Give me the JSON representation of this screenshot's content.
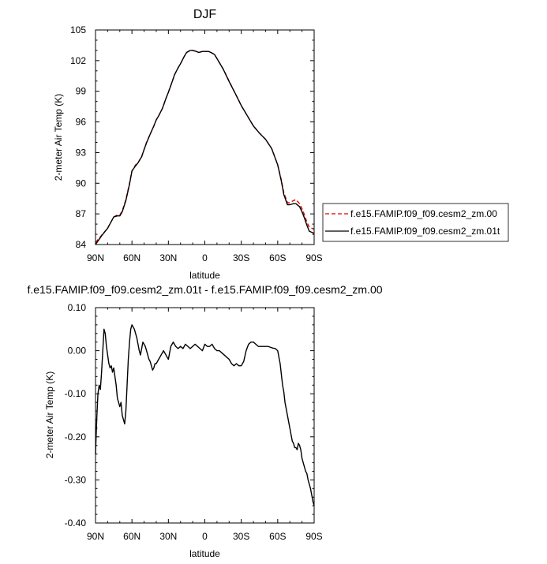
{
  "chart_data": [
    {
      "type": "line",
      "title": "DJF",
      "xlabel": "latitude",
      "ylabel": "2-meter Air Temp (K)",
      "x_range": [
        90,
        -90
      ],
      "x_ticks": [
        90,
        60,
        30,
        0,
        -30,
        -60,
        -90
      ],
      "x_tick_labels": [
        "90N",
        "60N",
        "30N",
        "0",
        "30S",
        "60S",
        "90S"
      ],
      "ylim": [
        84,
        105
      ],
      "y_ticks": [
        84,
        87,
        90,
        93,
        96,
        99,
        102,
        105
      ],
      "y_tick_labels": [
        "84",
        "87",
        "90",
        "93",
        "96",
        "99",
        "102",
        "105"
      ],
      "grid": false,
      "legend_position": "right",
      "series": [
        {
          "name": "f.e15.FAMIP.f09_f09.cesm2_zm.00",
          "color": "#dd0000",
          "dash": "dashed",
          "x": [
            90,
            85,
            80,
            75,
            72,
            70,
            68,
            65,
            62,
            60,
            57,
            55,
            52,
            50,
            48,
            45,
            42,
            40,
            38,
            35,
            32,
            30,
            27,
            25,
            22,
            20,
            17,
            15,
            12,
            10,
            7,
            5,
            2,
            0,
            -3,
            -5,
            -8,
            -10,
            -15,
            -20,
            -25,
            -30,
            -35,
            -40,
            -45,
            -50,
            -55,
            -60,
            -63,
            -65,
            -68,
            -70,
            -73,
            -75,
            -78,
            -80,
            -82,
            -84,
            -86,
            -88,
            -90
          ],
          "y": [
            84.2,
            84.9,
            85.6,
            86.7,
            86.9,
            86.9,
            87.3,
            88.4,
            90.0,
            91.2,
            91.8,
            92.0,
            92.6,
            93.3,
            94.0,
            94.8,
            95.6,
            96.2,
            96.6,
            97.3,
            98.3,
            98.9,
            99.9,
            100.6,
            101.3,
            101.7,
            102.4,
            102.8,
            103.0,
            103.0,
            102.9,
            102.8,
            102.9,
            102.9,
            102.9,
            102.8,
            102.6,
            102.2,
            101.2,
            100.0,
            98.8,
            97.6,
            96.6,
            95.6,
            94.9,
            94.3,
            93.4,
            91.8,
            90.3,
            89.1,
            88.1,
            88.1,
            88.3,
            88.4,
            88.0,
            87.5,
            86.9,
            86.2,
            85.7,
            85.6,
            85.5
          ]
        },
        {
          "name": "f.e15.FAMIP.f09_f09.cesm2_zm.01t",
          "color": "#000000",
          "dash": "solid",
          "x": [
            90,
            85,
            80,
            75,
            72,
            70,
            68,
            65,
            62,
            60,
            57,
            55,
            52,
            50,
            48,
            45,
            42,
            40,
            38,
            35,
            32,
            30,
            27,
            25,
            22,
            20,
            17,
            15,
            12,
            10,
            7,
            5,
            2,
            0,
            -3,
            -5,
            -8,
            -10,
            -15,
            -20,
            -25,
            -30,
            -35,
            -40,
            -45,
            -50,
            -55,
            -60,
            -63,
            -65,
            -68,
            -70,
            -73,
            -75,
            -78,
            -80,
            -82,
            -84,
            -86,
            -88,
            -90
          ],
          "y": [
            84.0,
            84.85,
            85.6,
            86.7,
            86.8,
            86.8,
            87.2,
            88.3,
            89.9,
            91.2,
            91.7,
            92.0,
            92.6,
            93.3,
            93.95,
            94.8,
            95.6,
            96.2,
            96.6,
            97.3,
            98.3,
            98.9,
            99.9,
            100.6,
            101.3,
            101.7,
            102.4,
            102.8,
            103.0,
            103.0,
            102.9,
            102.8,
            102.9,
            102.9,
            102.9,
            102.8,
            102.6,
            102.2,
            101.2,
            99.95,
            98.8,
            97.6,
            96.6,
            95.6,
            94.9,
            94.3,
            93.4,
            91.8,
            90.2,
            88.9,
            87.9,
            87.9,
            88.0,
            88.0,
            87.7,
            87.2,
            86.6,
            85.9,
            85.3,
            85.2,
            85.1
          ]
        }
      ]
    },
    {
      "type": "line",
      "title": "f.e15.FAMIP.f09_f09.cesm2_zm.01t - f.e15.FAMIP.f09_f09.cesm2_zm.00",
      "xlabel": "latitude",
      "ylabel": "2-meter Air Temp (K)",
      "x_range": [
        90,
        -90
      ],
      "x_ticks": [
        90,
        60,
        30,
        0,
        -30,
        -60,
        -90
      ],
      "x_tick_labels": [
        "90N",
        "60N",
        "30N",
        "0",
        "30S",
        "60S",
        "90S"
      ],
      "ylim": [
        -0.4,
        0.1
      ],
      "y_ticks": [
        -0.4,
        -0.3,
        -0.2,
        -0.1,
        0.0,
        0.1
      ],
      "y_tick_labels": [
        "-0.40",
        "-0.30",
        "-0.20",
        "-0.10",
        "0.00",
        "0.10"
      ],
      "grid": false,
      "series": [
        {
          "color": "#000000",
          "dash": "solid",
          "x": [
            90,
            89,
            88,
            87,
            86,
            85,
            84,
            83,
            82,
            81,
            80,
            79,
            78,
            77,
            76,
            75,
            74,
            73,
            72,
            71,
            70,
            69,
            68,
            67,
            66,
            65,
            64,
            63,
            62,
            61,
            60,
            59,
            58,
            57,
            56,
            55,
            54,
            53,
            52,
            51,
            50,
            49,
            48,
            47,
            46,
            45,
            44,
            43,
            42,
            41,
            40,
            38,
            36,
            34,
            32,
            30,
            28,
            26,
            24,
            22,
            20,
            18,
            16,
            14,
            12,
            10,
            8,
            6,
            4,
            2,
            0,
            -2,
            -4,
            -6,
            -8,
            -10,
            -12,
            -14,
            -16,
            -18,
            -20,
            -22,
            -24,
            -26,
            -28,
            -30,
            -32,
            -34,
            -36,
            -38,
            -40,
            -42,
            -44,
            -46,
            -48,
            -50,
            -52,
            -54,
            -56,
            -58,
            -60,
            -62,
            -64,
            -65,
            -66,
            -67,
            -68,
            -69,
            -70,
            -71,
            -72,
            -73,
            -74,
            -75,
            -76,
            -77,
            -78,
            -79,
            -80,
            -81,
            -82,
            -83,
            -84,
            -85,
            -86,
            -87,
            -88,
            -89,
            -90
          ],
          "y": [
            -0.24,
            -0.16,
            -0.1,
            -0.08,
            -0.09,
            -0.05,
            0.0,
            0.05,
            0.04,
            0.01,
            -0.01,
            -0.03,
            -0.04,
            -0.035,
            -0.05,
            -0.04,
            -0.06,
            -0.08,
            -0.11,
            -0.12,
            -0.13,
            -0.12,
            -0.15,
            -0.16,
            -0.17,
            -0.14,
            -0.08,
            -0.02,
            0.02,
            0.05,
            0.06,
            0.055,
            0.05,
            0.04,
            0.03,
            0.015,
            0.0,
            -0.01,
            0.005,
            0.02,
            0.015,
            0.01,
            0.0,
            -0.01,
            -0.02,
            -0.025,
            -0.035,
            -0.045,
            -0.04,
            -0.03,
            -0.03,
            -0.02,
            -0.01,
            0.0,
            -0.01,
            -0.02,
            0.01,
            0.02,
            0.01,
            0.005,
            0.01,
            0.005,
            0.015,
            0.01,
            0.005,
            0.01,
            0.015,
            0.01,
            0.005,
            0.0,
            0.015,
            0.01,
            0.01,
            0.015,
            0.005,
            0.0,
            0.0,
            -0.005,
            -0.01,
            -0.015,
            -0.02,
            -0.03,
            -0.035,
            -0.03,
            -0.035,
            -0.035,
            -0.025,
            0.0,
            0.015,
            0.02,
            0.02,
            0.015,
            0.01,
            0.01,
            0.01,
            0.01,
            0.01,
            0.008,
            0.006,
            0.005,
            0.0,
            -0.03,
            -0.08,
            -0.095,
            -0.12,
            -0.135,
            -0.15,
            -0.165,
            -0.18,
            -0.195,
            -0.21,
            -0.215,
            -0.225,
            -0.225,
            -0.23,
            -0.215,
            -0.22,
            -0.23,
            -0.25,
            -0.26,
            -0.27,
            -0.28,
            -0.285,
            -0.3,
            -0.31,
            -0.32,
            -0.335,
            -0.35,
            -0.36
          ]
        }
      ]
    }
  ]
}
